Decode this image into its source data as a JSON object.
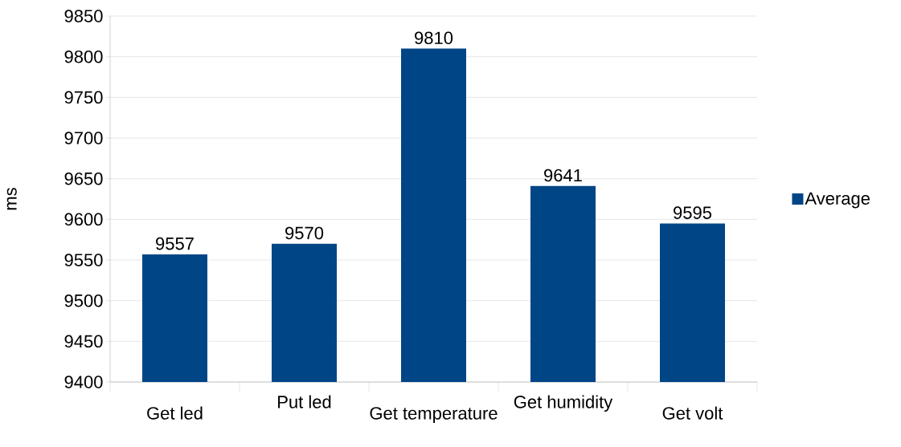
{
  "chart_data": {
    "type": "bar",
    "categories": [
      "Get led",
      "Put led",
      "Get temperature",
      "Get humidity",
      "Get volt"
    ],
    "series": [
      {
        "name": "Average",
        "color": "#004586",
        "values": [
          9557,
          9570,
          9810,
          9641,
          9595
        ]
      }
    ],
    "ylabel": "ms",
    "ylim": [
      9400,
      9850
    ],
    "yticks": [
      9400,
      9450,
      9500,
      9550,
      9600,
      9650,
      9700,
      9750,
      9800,
      9850
    ],
    "grid": "y",
    "legend": "right",
    "data_labels": true
  }
}
